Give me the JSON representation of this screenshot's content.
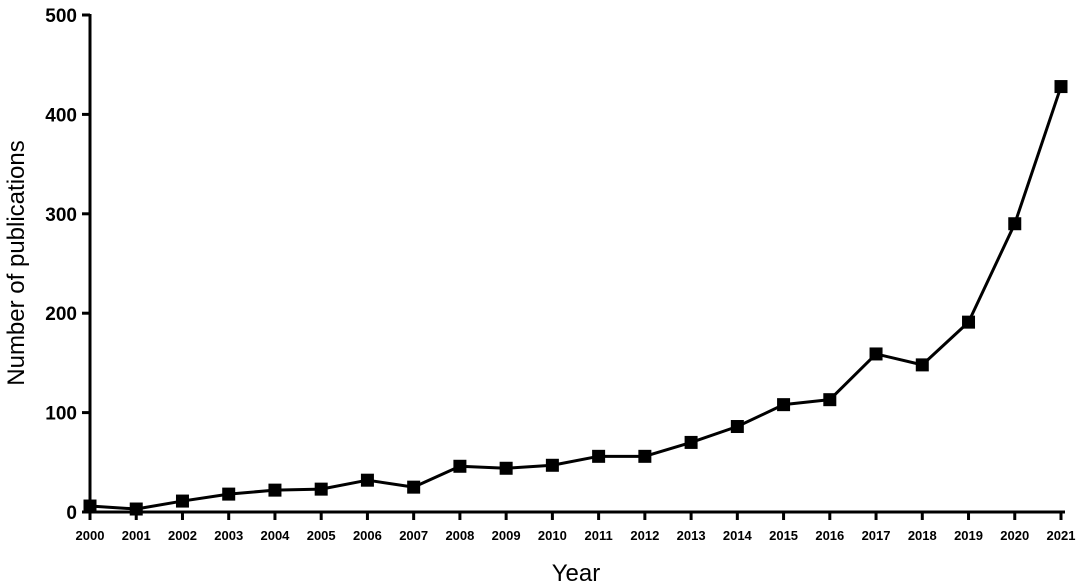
{
  "chart_data": {
    "type": "line",
    "title": "",
    "xlabel": "Year",
    "ylabel": "Number of  publications",
    "ylim": [
      0,
      500
    ],
    "yticks": [
      0,
      100,
      200,
      300,
      400,
      500
    ],
    "grid": false,
    "legend": "none",
    "marker": "square",
    "colors": {
      "line": "#000000",
      "marker": "#000000",
      "axis": "#000000"
    },
    "categories": [
      "2000",
      "2001",
      "2002",
      "2003",
      "2004",
      "2005",
      "2006",
      "2007",
      "2008",
      "2009",
      "2010",
      "2011",
      "2012",
      "2013",
      "2014",
      "2015",
      "2016",
      "2017",
      "2018",
      "2019",
      "2020",
      "2021"
    ],
    "series": [
      {
        "values": [
          6,
          3,
          11,
          18,
          22,
          23,
          32,
          25,
          46,
          44,
          47,
          56,
          56,
          70,
          86,
          108,
          113,
          159,
          148,
          191,
          290,
          428
        ]
      }
    ]
  }
}
